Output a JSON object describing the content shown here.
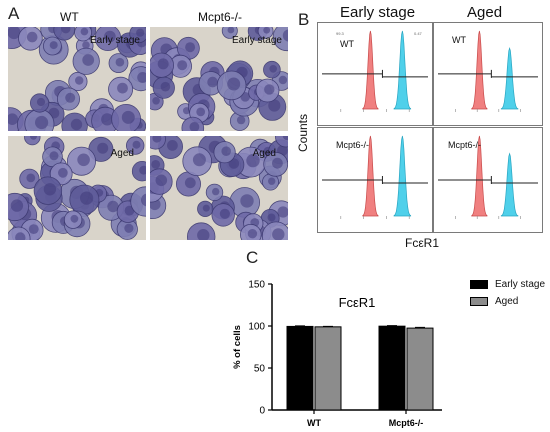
{
  "panel_a": {
    "letter": "A",
    "col_headers": [
      "WT",
      "Mcpt6-/-"
    ],
    "tiles": [
      {
        "label": "Early stage"
      },
      {
        "label": "Early stage"
      },
      {
        "label": "Aged"
      },
      {
        "label": "Aged"
      }
    ]
  },
  "panel_b": {
    "letter": "B",
    "col_headers": [
      "Early stage",
      "Aged"
    ],
    "y_axis_title": "Counts",
    "x_axis_title": "FcεR1",
    "panels": [
      {
        "label": "WT",
        "pct_left": "99.3",
        "pct_right": "0.47"
      },
      {
        "label": "WT"
      },
      {
        "label": "Mcpt6-/-"
      },
      {
        "label": "Mcpt6-/-"
      }
    ],
    "colors": {
      "control": "#f08080",
      "stained": "#4fd0ea"
    }
  },
  "panel_c": {
    "letter": "C",
    "legend": [
      {
        "name": "Early stage",
        "color": "#000000"
      },
      {
        "name": "Aged",
        "color": "#8c8c8c"
      }
    ]
  },
  "chart_data": {
    "type": "bar",
    "title": "FcεR1",
    "categories": [
      "WT",
      "Mcpt6-/-"
    ],
    "series": [
      {
        "name": "Early stage",
        "values": [
          99.5,
          99.8
        ],
        "color": "#000000"
      },
      {
        "name": "Aged",
        "values": [
          99.0,
          97.5
        ],
        "color": "#8c8c8c"
      }
    ],
    "errors": [
      [
        0.6,
        0.6
      ],
      [
        0.6,
        0.8
      ]
    ],
    "ylabel": "% of cells",
    "xlabel": "",
    "ylim": [
      0,
      150
    ],
    "yticks": [
      0,
      50,
      100,
      150
    ],
    "grid": false,
    "legend_position": "right"
  }
}
